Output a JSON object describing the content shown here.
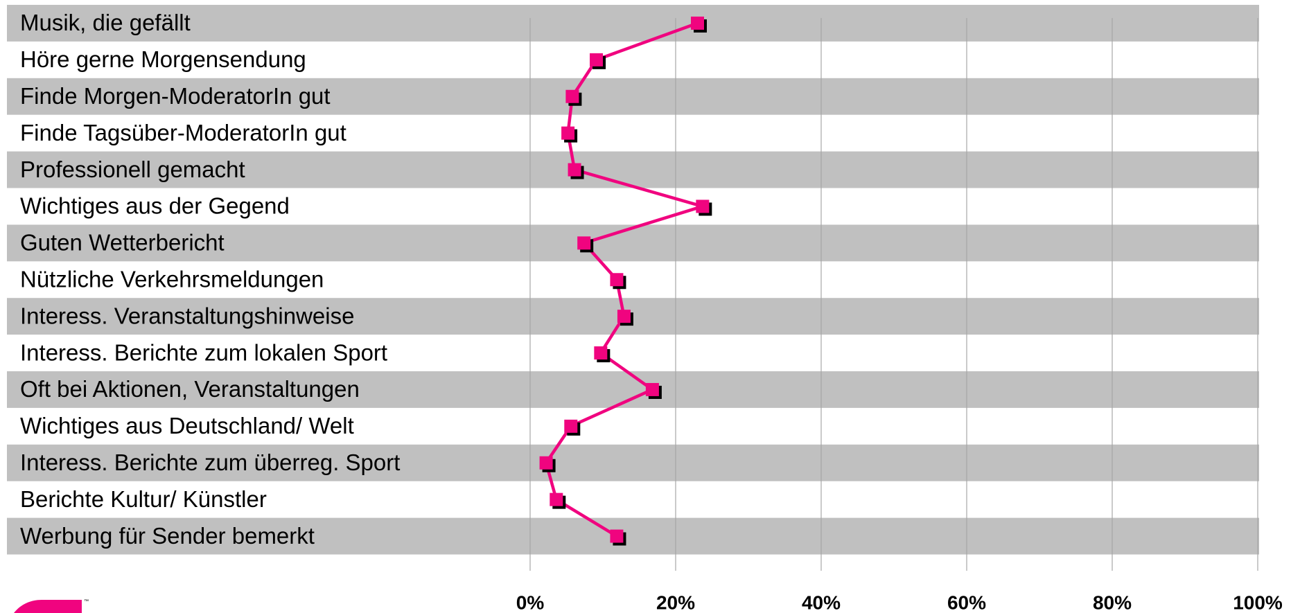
{
  "chart_data": {
    "type": "line",
    "orientation": "horizontal",
    "categories": [
      "Musik, die gefällt",
      "Höre gerne Morgensendung",
      "Finde Morgen-ModeratorIn gut",
      "Finde Tagsüber-ModeratorIn gut",
      "Professionell gemacht",
      "Wichtiges aus der Gegend",
      "Guten Wetterbericht",
      "Nützliche Verkehrsmeldungen",
      "Interess. Veranstaltungshinweise",
      "Interess. Berichte zum lokalen Sport",
      "Oft bei Aktionen, Veranstaltungen",
      "Wichtiges aus Deutschland/ Welt",
      "Interess. Berichte zum überreg. Sport",
      "Berichte Kultur/ Künstler",
      "Werbung für Sender bemerkt"
    ],
    "values": [
      23.0,
      9.1,
      5.8,
      5.2,
      6.1,
      23.7,
      7.4,
      11.9,
      12.9,
      9.7,
      16.8,
      5.6,
      2.2,
      3.6,
      11.9
    ],
    "color": "#f0047f",
    "xlim": [
      0,
      100
    ],
    "xticks": [
      {
        "value": 0,
        "label": "0%"
      },
      {
        "value": 20,
        "label": "20%"
      },
      {
        "value": 40,
        "label": "40%"
      },
      {
        "value": 60,
        "label": "60%"
      },
      {
        "value": 80,
        "label": "80%"
      },
      {
        "value": 100,
        "label": "100%"
      }
    ],
    "grid": true
  }
}
